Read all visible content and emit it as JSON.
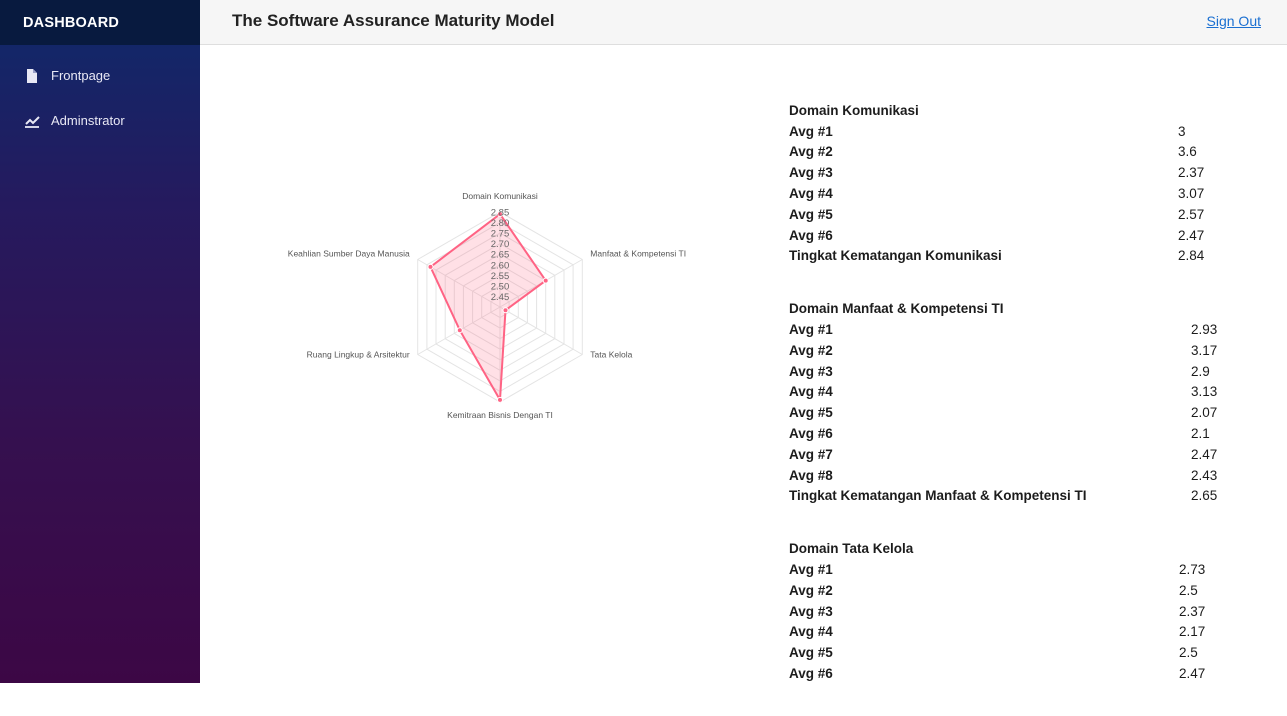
{
  "sidebar": {
    "brand": "DASHBOARD",
    "items": [
      {
        "label": "Frontpage",
        "icon": "file-icon"
      },
      {
        "label": "Adminstrator",
        "icon": "line-chart-icon"
      }
    ]
  },
  "header": {
    "title": "The Software Assurance Maturity Model",
    "signout": "Sign Out"
  },
  "chart_data": {
    "type": "radar",
    "axes": [
      "Domain Komunikasi",
      "Manfaat & Kompetensi TI",
      "Tata Kelola",
      "Kemitraan Bisnis Dengan TI",
      "Ruang Lingkup & Arsitektur",
      "Keahlian Sumber Daya Manusia"
    ],
    "ticks": [
      "2.45",
      "2.50",
      "2.55",
      "2.60",
      "2.65",
      "2.70",
      "2.75",
      "2.80",
      "2.85"
    ],
    "rmin": 2.4,
    "rmax": 2.85,
    "series": [
      {
        "values": [
          2.84,
          2.65,
          2.43,
          2.84,
          2.62,
          2.78
        ],
        "color": "#ff6384"
      }
    ],
    "grid": true
  },
  "tables": [
    {
      "title": "Domain Komunikasi",
      "rows": [
        {
          "label": "Avg #1",
          "value": "3"
        },
        {
          "label": "Avg #2",
          "value": "3.6"
        },
        {
          "label": "Avg #3",
          "value": "2.37"
        },
        {
          "label": "Avg #4",
          "value": "3.07"
        },
        {
          "label": "Avg #5",
          "value": "2.57"
        },
        {
          "label": "Avg #6",
          "value": "2.47"
        },
        {
          "label": "Tingkat Kematangan Komunikasi",
          "value": "2.84"
        }
      ]
    },
    {
      "title": "Domain Manfaat & Kompetensi TI",
      "rows": [
        {
          "label": "Avg #1",
          "value": "2.93"
        },
        {
          "label": "Avg #2",
          "value": "3.17"
        },
        {
          "label": "Avg #3",
          "value": "2.9"
        },
        {
          "label": "Avg #4",
          "value": "3.13"
        },
        {
          "label": "Avg #5",
          "value": "2.07"
        },
        {
          "label": "Avg #6",
          "value": "2.1"
        },
        {
          "label": "Avg #7",
          "value": "2.47"
        },
        {
          "label": "Avg #8",
          "value": "2.43"
        },
        {
          "label": "Tingkat Kematangan Manfaat & Kompetensi TI",
          "value": "2.65"
        }
      ]
    },
    {
      "title": "Domain Tata Kelola",
      "rows": [
        {
          "label": "Avg #1",
          "value": "2.73"
        },
        {
          "label": "Avg #2",
          "value": "2.5"
        },
        {
          "label": "Avg #3",
          "value": "2.37"
        },
        {
          "label": "Avg #4",
          "value": "2.17"
        },
        {
          "label": "Avg #5",
          "value": "2.5"
        },
        {
          "label": "Avg #6",
          "value": "2.47"
        }
      ]
    }
  ]
}
